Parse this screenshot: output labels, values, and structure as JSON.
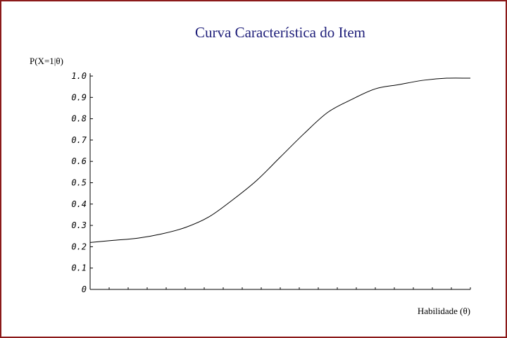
{
  "chart_data": {
    "type": "line",
    "title": "Curva Característica do Item",
    "ylabel": "P(X=1|θ)",
    "xlabel": "Habilidade (θ)",
    "ylim": [
      0,
      1
    ],
    "yticks": [
      "0",
      "0.1",
      "0.2",
      "0.3",
      "0.4",
      "0.5",
      "0.6",
      "0.7",
      "0.8",
      "0.9",
      "1.0"
    ],
    "xlim": [
      -4,
      4
    ],
    "x_minor_tick_count": 20,
    "grid": false,
    "series": [
      {
        "x": [
          -4.0,
          -3.5,
          -3.0,
          -2.5,
          -2.0,
          -1.5,
          -1.0,
          -0.5,
          0.0,
          0.5,
          1.0,
          1.5,
          2.0,
          2.5,
          3.0,
          3.5,
          4.0
        ],
        "y": [
          0.22,
          0.23,
          0.24,
          0.26,
          0.29,
          0.34,
          0.42,
          0.51,
          0.62,
          0.73,
          0.83,
          0.89,
          0.94,
          0.96,
          0.98,
          0.99,
          0.99
        ]
      }
    ]
  },
  "colors": {
    "frame": "#8b1a1a",
    "title": "#1f1f7a",
    "line": "#000000"
  }
}
